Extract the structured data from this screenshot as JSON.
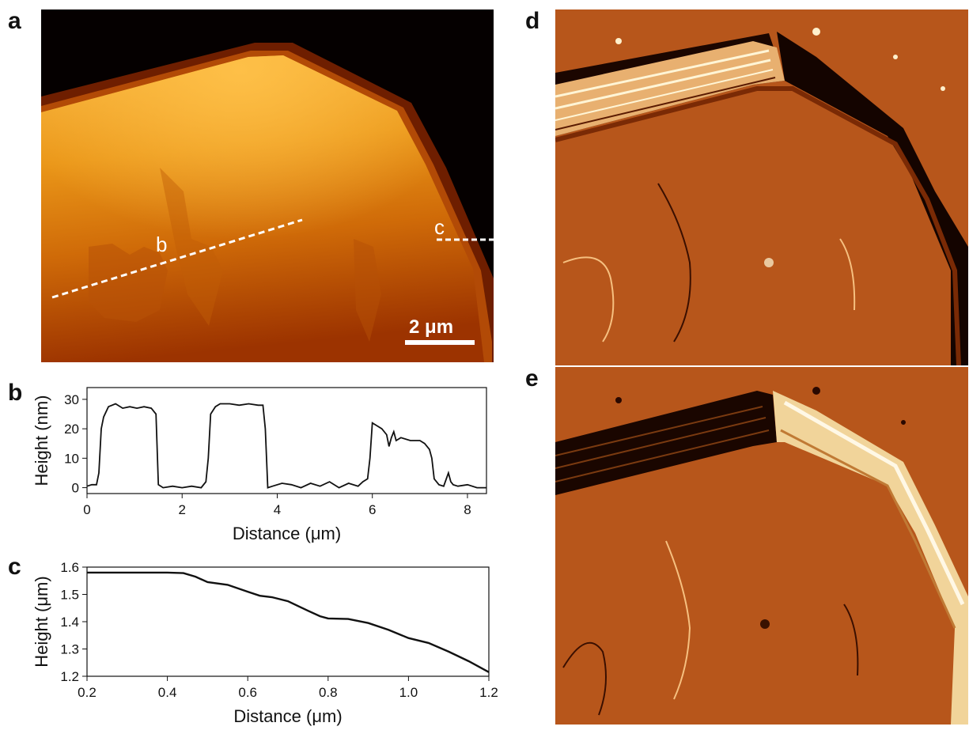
{
  "panels": {
    "a": "a",
    "b": "b",
    "c": "c",
    "d": "d",
    "e": "e"
  },
  "afm_topography": {
    "line_label_b": "b",
    "line_label_c": "c",
    "scalebar_label": "2 μm",
    "colors": {
      "bg": "#050000",
      "rim": "#8a2c00",
      "top": "#f5a623",
      "mid": "#d97b0c",
      "low": "#9a2e00"
    }
  },
  "afm_deflection_d": {
    "colors": {
      "surface": "#b9561a",
      "dark": "#1a0500",
      "bright": "#fff3cc"
    }
  },
  "afm_deflection_e": {
    "colors": {
      "surface": "#b9561a",
      "dark": "#1a0500",
      "bright": "#fff3cc"
    }
  },
  "chart_data": [
    {
      "type": "line",
      "xlabel": "Distance (μm)",
      "ylabel": "Height (nm)",
      "xlim": [
        0,
        8.4
      ],
      "ylim": [
        -2,
        34
      ],
      "xticks": [
        0,
        2,
        4,
        6,
        8
      ],
      "yticks": [
        0,
        10,
        20,
        30
      ],
      "x": [
        0,
        0.1,
        0.2,
        0.25,
        0.3,
        0.35,
        0.45,
        0.6,
        0.75,
        0.9,
        1.05,
        1.2,
        1.35,
        1.45,
        1.5,
        1.6,
        1.8,
        2.0,
        2.2,
        2.4,
        2.5,
        2.55,
        2.6,
        2.7,
        2.8,
        3.0,
        3.2,
        3.4,
        3.6,
        3.7,
        3.75,
        3.8,
        3.9,
        4.1,
        4.3,
        4.5,
        4.7,
        4.9,
        5.1,
        5.3,
        5.5,
        5.7,
        5.8,
        5.9,
        5.95,
        6.0,
        6.1,
        6.2,
        6.3,
        6.35,
        6.4,
        6.45,
        6.5,
        6.6,
        6.8,
        7.0,
        7.1,
        7.2,
        7.25,
        7.3,
        7.4,
        7.5,
        7.6,
        7.65,
        7.7,
        7.8,
        8.0,
        8.2,
        8.4
      ],
      "y": [
        0.5,
        1,
        1,
        5,
        20,
        24,
        27.5,
        28.5,
        27,
        27.5,
        27,
        27.5,
        27,
        25,
        1,
        0,
        0.5,
        0,
        0.5,
        0,
        2,
        10,
        25,
        27.5,
        28.5,
        28.5,
        28,
        28.5,
        28,
        28,
        20,
        0,
        0.5,
        1.5,
        1,
        0,
        1.5,
        0.5,
        2,
        0,
        1.5,
        0.5,
        2,
        3,
        10,
        22,
        21,
        20,
        18,
        14,
        17,
        19,
        16,
        17,
        16,
        16,
        15,
        13,
        10,
        3,
        1,
        0.5,
        5,
        2,
        1,
        0.5,
        1,
        0,
        0
      ]
    },
    {
      "type": "line",
      "xlabel": "Distance (μm)",
      "ylabel": "Height (μm)",
      "xlim": [
        0.2,
        1.2
      ],
      "ylim": [
        1.2,
        1.6
      ],
      "xticks": [
        0.2,
        0.4,
        0.6,
        0.8,
        1.0,
        1.2
      ],
      "yticks": [
        1.2,
        1.3,
        1.4,
        1.5,
        1.6
      ],
      "x": [
        0.2,
        0.3,
        0.4,
        0.44,
        0.47,
        0.5,
        0.55,
        0.6,
        0.63,
        0.66,
        0.7,
        0.75,
        0.78,
        0.8,
        0.85,
        0.9,
        0.95,
        1.0,
        1.05,
        1.1,
        1.15,
        1.2
      ],
      "y": [
        1.58,
        1.58,
        1.58,
        1.578,
        1.565,
        1.545,
        1.535,
        1.51,
        1.495,
        1.49,
        1.475,
        1.44,
        1.42,
        1.412,
        1.41,
        1.395,
        1.37,
        1.34,
        1.322,
        1.29,
        1.255,
        1.215
      ]
    }
  ]
}
